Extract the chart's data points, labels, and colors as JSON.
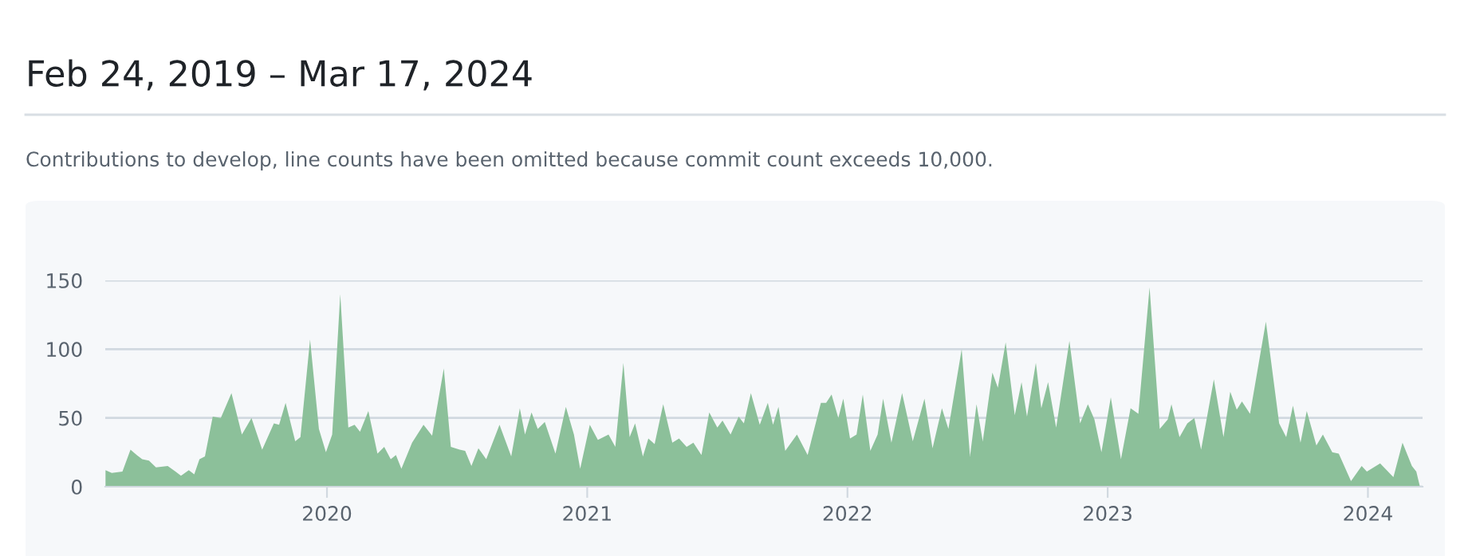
{
  "chart_data": {
    "type": "area",
    "title": "Feb 24, 2019 – Mar 17, 2024",
    "subtitle": "Contributions to develop, line counts have been omitted because commit count exceeds 10,000.",
    "xlim": [
      2019.148,
      2024.21
    ],
    "xticks": [
      2020,
      2021,
      2022,
      2023,
      2024
    ],
    "ylim": [
      0,
      150
    ],
    "yticks": [
      0,
      50,
      100,
      150
    ],
    "grid": "y",
    "series": [
      {
        "color": "#8cc09a",
        "x": [
          2019.149,
          2019.173,
          2019.214,
          2019.245,
          2019.269,
          2019.29,
          2019.316,
          2019.343,
          2019.388,
          2019.418,
          2019.439,
          2019.469,
          2019.49,
          2019.51,
          2019.531,
          2019.561,
          2019.592,
          2019.633,
          2019.673,
          2019.71,
          2019.751,
          2019.796,
          2019.816,
          2019.841,
          2019.878,
          2019.898,
          2019.935,
          2019.969,
          2019.996,
          2020.02,
          2020.051,
          2020.082,
          2020.106,
          2020.127,
          2020.159,
          2020.194,
          2020.22,
          2020.245,
          2020.265,
          2020.286,
          2020.327,
          2020.371,
          2020.404,
          2020.449,
          2020.476,
          2020.51,
          2020.531,
          2020.555,
          2020.582,
          2020.612,
          2020.663,
          2020.708,
          2020.741,
          2020.761,
          2020.786,
          2020.81,
          2020.837,
          2020.878,
          2020.918,
          2020.949,
          2020.973,
          2021.01,
          2021.041,
          2021.082,
          2021.108,
          2021.139,
          2021.163,
          2021.184,
          2021.214,
          2021.235,
          2021.259,
          2021.292,
          2021.327,
          2021.353,
          2021.382,
          2021.408,
          2021.439,
          2021.469,
          2021.5,
          2021.52,
          2021.551,
          2021.582,
          2021.602,
          2021.629,
          2021.663,
          2021.694,
          2021.714,
          2021.735,
          2021.761,
          2021.806,
          2021.847,
          2021.898,
          2021.918,
          2021.939,
          2021.965,
          2021.984,
          2022.01,
          2022.035,
          2022.059,
          2022.088,
          2022.116,
          2022.137,
          2022.169,
          2022.21,
          2022.251,
          2022.296,
          2022.327,
          2022.363,
          2022.388,
          2022.439,
          2022.471,
          2022.496,
          2022.52,
          2022.557,
          2022.578,
          2022.608,
          2022.643,
          2022.669,
          2022.69,
          2022.724,
          2022.745,
          2022.771,
          2022.802,
          2022.853,
          2022.894,
          2022.924,
          2022.949,
          2022.976,
          2023.012,
          2023.051,
          2023.088,
          2023.118,
          2023.161,
          2023.2,
          2023.231,
          2023.245,
          2023.276,
          2023.306,
          2023.333,
          2023.359,
          2023.408,
          2023.445,
          2023.471,
          2023.496,
          2023.516,
          2023.547,
          2023.608,
          2023.659,
          2023.686,
          2023.712,
          2023.741,
          2023.765,
          2023.802,
          2023.827,
          2023.863,
          2023.888,
          2023.935,
          2023.976,
          2023.996,
          2024.047,
          2024.098,
          2024.133,
          2024.169,
          2024.186,
          2024.2
        ],
        "values": [
          12,
          10,
          11,
          27,
          23,
          20,
          19,
          14,
          15,
          11,
          8,
          12,
          9,
          20,
          22,
          51,
          50,
          68,
          38,
          50,
          27,
          46,
          45,
          61,
          33,
          36,
          107,
          42,
          25,
          38,
          140,
          43,
          45,
          40,
          55,
          24,
          29,
          20,
          23,
          13,
          32,
          45,
          37,
          86,
          29,
          27,
          26,
          15,
          28,
          20,
          45,
          22,
          57,
          38,
          54,
          42,
          47,
          24,
          58,
          38,
          13,
          45,
          34,
          38,
          29,
          90,
          36,
          46,
          22,
          35,
          31,
          60,
          32,
          35,
          29,
          32,
          23,
          54,
          43,
          48,
          38,
          51,
          46,
          68,
          45,
          61,
          45,
          58,
          26,
          38,
          23,
          61,
          61,
          67,
          50,
          64,
          35,
          38,
          67,
          26,
          38,
          64,
          32,
          68,
          33,
          64,
          28,
          57,
          42,
          100,
          22,
          60,
          33,
          83,
          72,
          105,
          52,
          76,
          51,
          90,
          57,
          76,
          43,
          106,
          46,
          60,
          49,
          25,
          65,
          20,
          57,
          53,
          145,
          42,
          49,
          60,
          36,
          46,
          50,
          27,
          78,
          36,
          69,
          56,
          62,
          53,
          120,
          46,
          36,
          59,
          32,
          55,
          30,
          38,
          25,
          24,
          4,
          15,
          11,
          17,
          7,
          32,
          15,
          11,
          0
        ]
      }
    ]
  }
}
